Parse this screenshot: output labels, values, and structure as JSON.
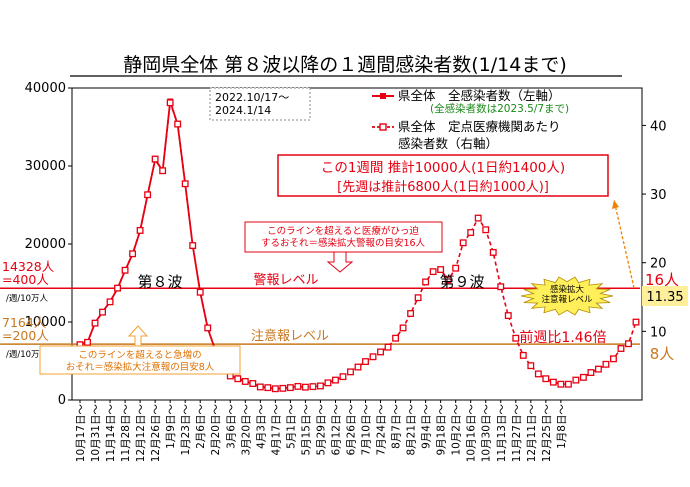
{
  "chart_data": {
    "type": "line",
    "title": "静岡県全体 第８波以降の１週間感染者数(1/14まで)",
    "period": "2022.10/17～\n2024.1/14",
    "left_axis": {
      "min": 0,
      "max": 40000,
      "ticks": [
        0,
        10000,
        20000,
        30000,
        40000
      ],
      "tick_labels": [
        "0",
        "10000",
        "20000",
        "30000",
        "40000"
      ]
    },
    "right_axis": {
      "min": 0,
      "max": 45.45,
      "ticks": [
        10,
        20,
        30,
        40
      ],
      "tick_labels": [
        "10",
        "20",
        "30",
        "40"
      ]
    },
    "x_labels": [
      "10月17日",
      "10月31日",
      "11月14日",
      "11月28日",
      "12月12日",
      "12月26日",
      "1月9日",
      "1月23日",
      "2月6日",
      "2月20日",
      "3月6日",
      "3月20日",
      "4月3日",
      "4月17日",
      "5月1日",
      "5月15日",
      "5月29日",
      "6月12日",
      "6月26日",
      "7月10日",
      "7月24日",
      "8月7日",
      "8月21日",
      "9月4日",
      "9月18日",
      "10月2日",
      "10月16日",
      "10月30日",
      "11月13日",
      "11月27日",
      "12月11日",
      "12月25日",
      "1月8日"
    ],
    "x_label_suffix": "～",
    "series": [
      {
        "name": "県全体　全感染者数（左軸）",
        "note": "(全感染者数は2023.5/7まで)",
        "axis": "left",
        "color": "#e60012",
        "marker": "filled-square",
        "start_index": 0,
        "values": [
          7164,
          7400,
          9900,
          11300,
          12600,
          14300,
          16600,
          18700,
          21700,
          26300,
          30800,
          29400,
          38300,
          35300,
          27700,
          19800,
          13800,
          9200,
          6400,
          4300,
          3100,
          2800,
          2400,
          2100,
          1700,
          1600,
          1450,
          1500,
          1600,
          1750,
          1650
        ]
      },
      {
        "name": "県全体　定点医療機関あたり感染者数（右軸）",
        "axis": "right",
        "color": "#e60012",
        "marker": "open-square",
        "start_index": 0,
        "values": [
          8.05,
          8.4,
          11.2,
          12.8,
          14.3,
          16.3,
          18.9,
          21.3,
          24.7,
          29.9,
          35.1,
          33.4,
          43.3,
          40.2,
          31.5,
          22.5,
          15.7,
          10.5,
          7.3,
          4.9,
          3.5,
          3.1,
          2.7,
          2.4,
          1.9,
          1.8,
          1.64,
          1.7,
          1.8,
          1.98,
          1.87,
          1.95,
          2.05,
          2.5,
          2.9,
          3.4,
          4.1,
          4.8,
          5.6,
          6.3,
          7.0,
          7.7,
          9.0,
          10.5,
          12.6,
          14.9,
          17.2,
          18.7,
          19.0,
          17.5,
          19.2,
          22.9,
          24.4,
          26.5,
          24.8,
          21.5,
          16.5,
          12.3,
          9.0,
          6.5,
          5.0,
          3.8,
          3.1,
          2.6,
          2.3,
          2.3,
          2.9,
          3.3,
          4.0,
          4.5,
          5.2,
          6.0,
          7.5,
          8.2,
          11.35
        ]
      }
    ],
    "reference_lines": [
      {
        "name": "警報レベル",
        "left_value": 14328,
        "right_value": 16,
        "color": "#e60012",
        "left_label": "14328人\n=400人",
        "left_unit": "/週/10万人",
        "right_label": "16人",
        "note": "このラインを超えると医療がひっ迫\nするおそれ＝感染拡大警報の目安16人"
      },
      {
        "name": "注意報レベル",
        "left_value": 7164,
        "right_value": 8,
        "color": "#c8781e",
        "left_label": "7164人\n=200人",
        "left_unit": "/週/10万人",
        "right_label": "8人",
        "note": "このラインを超えると急増の\nおそれ＝感染拡大注意報の目安8人"
      }
    ],
    "annotations": {
      "wave8": "第８波",
      "wave9": "第９波",
      "weekly_box_line1": "この1週間 推計10000人(1日約1400人)",
      "weekly_box_line2": "[先週は推計6800人(1日約1000人)]",
      "ratio": "前週比1.46倍",
      "expansion_badge": "感染拡大\n注意報レベル",
      "latest_value": "11.35"
    },
    "legend_placement": "top-right",
    "grid": false
  }
}
